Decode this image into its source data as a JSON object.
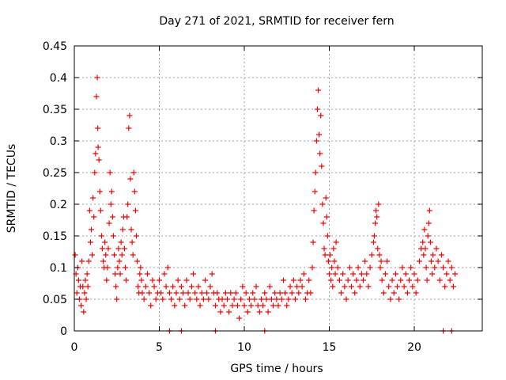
{
  "chart_data": {
    "type": "scatter",
    "title": "Day 271 of 2021, SRMTID for receiver fern",
    "xlabel": "GPS time / hours",
    "ylabel": "SRMTID / TECUs",
    "xlim": [
      0,
      24
    ],
    "ylim": [
      0,
      0.45
    ],
    "x_ticks": [
      0,
      5,
      10,
      15,
      20
    ],
    "x_tick_labels": [
      "0",
      "5",
      "10",
      "15",
      "20"
    ],
    "y_ticks": [
      0,
      0.05,
      0.1,
      0.15,
      0.2,
      0.25,
      0.3,
      0.35,
      0.4,
      0.45
    ],
    "y_tick_labels": [
      "0",
      "0.05",
      "0.1",
      "0.15",
      "0.2",
      "0.25",
      "0.3",
      "0.35",
      "0.4",
      "0.45"
    ],
    "grid": true,
    "marker": "plus",
    "color": "#ff0000",
    "series": [
      {
        "points": [
          [
            0.05,
            0.12
          ],
          [
            0.1,
            0.09
          ],
          [
            0.15,
            0.06
          ],
          [
            0.2,
            0.1
          ],
          [
            0.25,
            0.08
          ],
          [
            0.3,
            0.05
          ],
          [
            0.35,
            0.07
          ],
          [
            0.4,
            0.04
          ],
          [
            0.45,
            0.11
          ],
          [
            0.5,
            0.07
          ],
          [
            0.55,
            0.03
          ],
          [
            0.6,
            0.06
          ],
          [
            0.65,
            0.08
          ],
          [
            0.7,
            0.05
          ],
          [
            0.75,
            0.09
          ],
          [
            0.8,
            0.07
          ],
          [
            0.85,
            0.11
          ],
          [
            0.9,
            0.19
          ],
          [
            0.95,
            0.14
          ],
          [
            1.0,
            0.16
          ],
          [
            1.05,
            0.12
          ],
          [
            1.1,
            0.21
          ],
          [
            1.15,
            0.18
          ],
          [
            1.2,
            0.25
          ],
          [
            1.25,
            0.28
          ],
          [
            1.3,
            0.37
          ],
          [
            1.35,
            0.4
          ],
          [
            1.38,
            0.32
          ],
          [
            1.4,
            0.29
          ],
          [
            1.45,
            0.27
          ],
          [
            1.5,
            0.22
          ],
          [
            1.55,
            0.19
          ],
          [
            1.6,
            0.15
          ],
          [
            1.65,
            0.13
          ],
          [
            1.7,
            0.11
          ],
          [
            1.75,
            0.1
          ],
          [
            1.8,
            0.14
          ],
          [
            1.85,
            0.12
          ],
          [
            1.9,
            0.08
          ],
          [
            1.95,
            0.1
          ],
          [
            2.0,
            0.13
          ],
          [
            2.05,
            0.17
          ],
          [
            2.1,
            0.25
          ],
          [
            2.15,
            0.2
          ],
          [
            2.2,
            0.22
          ],
          [
            2.25,
            0.18
          ],
          [
            2.3,
            0.15
          ],
          [
            2.35,
            0.12
          ],
          [
            2.4,
            0.09
          ],
          [
            2.45,
            0.07
          ],
          [
            2.5,
            0.05
          ],
          [
            2.55,
            0.1
          ],
          [
            2.6,
            0.13
          ],
          [
            2.65,
            0.11
          ],
          [
            2.7,
            0.09
          ],
          [
            2.75,
            0.14
          ],
          [
            2.8,
            0.12
          ],
          [
            2.85,
            0.16
          ],
          [
            2.9,
            0.18
          ],
          [
            2.95,
            0.13
          ],
          [
            3.0,
            0.1
          ],
          [
            3.05,
            0.08
          ],
          [
            3.1,
            0.18
          ],
          [
            3.15,
            0.2
          ],
          [
            3.2,
            0.32
          ],
          [
            3.25,
            0.34
          ],
          [
            3.3,
            0.24
          ],
          [
            3.35,
            0.16
          ],
          [
            3.4,
            0.14
          ],
          [
            3.45,
            0.12
          ],
          [
            3.5,
            0.25
          ],
          [
            3.55,
            0.22
          ],
          [
            3.6,
            0.19
          ],
          [
            3.65,
            0.15
          ],
          [
            3.7,
            0.11
          ],
          [
            3.75,
            0.07
          ],
          [
            3.8,
            0.06
          ],
          [
            3.85,
            0.09
          ],
          [
            3.9,
            0.1
          ],
          [
            3.95,
            0.08
          ],
          [
            4.0,
            0.06
          ],
          [
            4.1,
            0.05
          ],
          [
            4.2,
            0.07
          ],
          [
            4.3,
            0.09
          ],
          [
            4.4,
            0.06
          ],
          [
            4.5,
            0.04
          ],
          [
            4.6,
            0.08
          ],
          [
            4.7,
            0.07
          ],
          [
            4.8,
            0.05
          ],
          [
            4.9,
            0.06
          ],
          [
            5.0,
            0.08
          ],
          [
            5.1,
            0.06
          ],
          [
            5.2,
            0.05
          ],
          [
            5.3,
            0.09
          ],
          [
            5.4,
            0.07
          ],
          [
            5.5,
            0.1
          ],
          [
            5.6,
            0.06
          ],
          [
            5.7,
            0.05
          ],
          [
            5.8,
            0.07
          ],
          [
            5.9,
            0.04
          ],
          [
            6.0,
            0.06
          ],
          [
            6.1,
            0.08
          ],
          [
            6.2,
            0.05
          ],
          [
            6.3,
            0.07
          ],
          [
            6.4,
            0.06
          ],
          [
            6.5,
            0.04
          ],
          [
            6.6,
            0.08
          ],
          [
            6.7,
            0.06
          ],
          [
            6.8,
            0.05
          ],
          [
            6.9,
            0.07
          ],
          [
            7.0,
            0.09
          ],
          [
            7.1,
            0.06
          ],
          [
            7.2,
            0.05
          ],
          [
            7.3,
            0.07
          ],
          [
            7.4,
            0.04
          ],
          [
            7.5,
            0.06
          ],
          [
            7.6,
            0.05
          ],
          [
            7.7,
            0.08
          ],
          [
            7.8,
            0.06
          ],
          [
            7.9,
            0.05
          ],
          [
            8.0,
            0.07
          ],
          [
            8.1,
            0.09
          ],
          [
            8.2,
            0.06
          ],
          [
            8.3,
            0.04
          ],
          [
            8.4,
            0.06
          ],
          [
            8.5,
            0.05
          ],
          [
            8.6,
            0.03
          ],
          [
            8.7,
            0.05
          ],
          [
            8.8,
            0.04
          ],
          [
            8.9,
            0.06
          ],
          [
            9.0,
            0.05
          ],
          [
            9.1,
            0.03
          ],
          [
            9.2,
            0.06
          ],
          [
            9.3,
            0.04
          ],
          [
            9.4,
            0.05
          ],
          [
            9.5,
            0.06
          ],
          [
            9.6,
            0.04
          ],
          [
            9.7,
            0.02
          ],
          [
            9.8,
            0.05
          ],
          [
            9.9,
            0.07
          ],
          [
            10.0,
            0.04
          ],
          [
            10.1,
            0.06
          ],
          [
            10.2,
            0.03
          ],
          [
            10.3,
            0.05
          ],
          [
            10.4,
            0.04
          ],
          [
            10.5,
            0.06
          ],
          [
            10.6,
            0.05
          ],
          [
            10.7,
            0.07
          ],
          [
            10.8,
            0.04
          ],
          [
            10.9,
            0.03
          ],
          [
            11.0,
            0.05
          ],
          [
            11.1,
            0.04
          ],
          [
            11.2,
            0.06
          ],
          [
            11.3,
            0.05
          ],
          [
            11.4,
            0.03
          ],
          [
            11.5,
            0.07
          ],
          [
            11.6,
            0.05
          ],
          [
            11.7,
            0.04
          ],
          [
            11.8,
            0.06
          ],
          [
            11.9,
            0.05
          ],
          [
            12.0,
            0.04
          ],
          [
            12.1,
            0.06
          ],
          [
            12.2,
            0.05
          ],
          [
            12.3,
            0.08
          ],
          [
            12.4,
            0.06
          ],
          [
            12.5,
            0.04
          ],
          [
            12.6,
            0.05
          ],
          [
            12.7,
            0.07
          ],
          [
            12.8,
            0.06
          ],
          [
            12.9,
            0.08
          ],
          [
            13.0,
            0.05
          ],
          [
            13.1,
            0.07
          ],
          [
            13.2,
            0.06
          ],
          [
            13.3,
            0.08
          ],
          [
            13.4,
            0.07
          ],
          [
            13.5,
            0.09
          ],
          [
            13.6,
            0.05
          ],
          [
            13.7,
            0.06
          ],
          [
            13.8,
            0.08
          ],
          [
            13.9,
            0.06
          ],
          [
            14.0,
            0.1
          ],
          [
            14.05,
            0.14
          ],
          [
            14.1,
            0.19
          ],
          [
            14.15,
            0.22
          ],
          [
            14.2,
            0.25
          ],
          [
            14.25,
            0.3
          ],
          [
            14.3,
            0.35
          ],
          [
            14.35,
            0.38
          ],
          [
            14.4,
            0.31
          ],
          [
            14.45,
            0.28
          ],
          [
            14.5,
            0.34
          ],
          [
            14.55,
            0.26
          ],
          [
            14.6,
            0.2
          ],
          [
            14.65,
            0.17
          ],
          [
            14.7,
            0.13
          ],
          [
            14.75,
            0.12
          ],
          [
            14.8,
            0.21
          ],
          [
            14.85,
            0.18
          ],
          [
            14.9,
            0.15
          ],
          [
            14.95,
            0.11
          ],
          [
            15.0,
            0.09
          ],
          [
            15.05,
            0.12
          ],
          [
            15.1,
            0.08
          ],
          [
            15.15,
            0.1
          ],
          [
            15.2,
            0.07
          ],
          [
            15.25,
            0.13
          ],
          [
            15.3,
            0.11
          ],
          [
            15.35,
            0.09
          ],
          [
            15.4,
            0.14
          ],
          [
            15.5,
            0.1
          ],
          [
            15.6,
            0.08
          ],
          [
            15.7,
            0.06
          ],
          [
            15.8,
            0.09
          ],
          [
            15.9,
            0.07
          ],
          [
            16.0,
            0.05
          ],
          [
            16.1,
            0.08
          ],
          [
            16.2,
            0.1
          ],
          [
            16.3,
            0.07
          ],
          [
            16.4,
            0.09
          ],
          [
            16.5,
            0.06
          ],
          [
            16.6,
            0.08
          ],
          [
            16.7,
            0.1
          ],
          [
            16.8,
            0.07
          ],
          [
            16.9,
            0.09
          ],
          [
            17.0,
            0.08
          ],
          [
            17.1,
            0.11
          ],
          [
            17.2,
            0.09
          ],
          [
            17.3,
            0.07
          ],
          [
            17.4,
            0.1
          ],
          [
            17.5,
            0.12
          ],
          [
            17.6,
            0.14
          ],
          [
            17.65,
            0.15
          ],
          [
            17.7,
            0.17
          ],
          [
            17.75,
            0.19
          ],
          [
            17.8,
            0.18
          ],
          [
            17.85,
            0.13
          ],
          [
            17.9,
            0.2
          ],
          [
            17.95,
            0.12
          ],
          [
            18.0,
            0.1
          ],
          [
            18.05,
            0.11
          ],
          [
            18.1,
            0.08
          ],
          [
            18.2,
            0.06
          ],
          [
            18.3,
            0.09
          ],
          [
            18.4,
            0.11
          ],
          [
            18.5,
            0.07
          ],
          [
            18.6,
            0.05
          ],
          [
            18.7,
            0.08
          ],
          [
            18.8,
            0.06
          ],
          [
            18.9,
            0.09
          ],
          [
            19.0,
            0.07
          ],
          [
            19.1,
            0.05
          ],
          [
            19.2,
            0.08
          ],
          [
            19.3,
            0.1
          ],
          [
            19.4,
            0.07
          ],
          [
            19.5,
            0.09
          ],
          [
            19.6,
            0.06
          ],
          [
            19.7,
            0.08
          ],
          [
            19.8,
            0.1
          ],
          [
            19.9,
            0.07
          ],
          [
            20.0,
            0.09
          ],
          [
            20.1,
            0.06
          ],
          [
            20.2,
            0.08
          ],
          [
            20.3,
            0.11
          ],
          [
            20.4,
            0.13
          ],
          [
            20.5,
            0.14
          ],
          [
            20.55,
            0.12
          ],
          [
            20.6,
            0.16
          ],
          [
            20.65,
            0.13
          ],
          [
            20.7,
            0.1
          ],
          [
            20.75,
            0.08
          ],
          [
            20.8,
            0.15
          ],
          [
            20.85,
            0.17
          ],
          [
            20.9,
            0.19
          ],
          [
            20.95,
            0.14
          ],
          [
            21.0,
            0.11
          ],
          [
            21.05,
            0.09
          ],
          [
            21.1,
            0.12
          ],
          [
            21.2,
            0.1
          ],
          [
            21.3,
            0.13
          ],
          [
            21.4,
            0.11
          ],
          [
            21.5,
            0.08
          ],
          [
            21.6,
            0.12
          ],
          [
            21.7,
            0.1
          ],
          [
            21.8,
            0.07
          ],
          [
            21.9,
            0.09
          ],
          [
            22.0,
            0.11
          ],
          [
            22.1,
            0.08
          ],
          [
            22.2,
            0.1
          ],
          [
            22.3,
            0.07
          ],
          [
            22.4,
            0.09
          ]
        ]
      },
      {
        "points": [
          [
            5.6,
            0
          ],
          [
            6.3,
            0
          ],
          [
            8.3,
            0
          ],
          [
            11.2,
            0
          ],
          [
            21.7,
            0
          ],
          [
            22.2,
            0
          ]
        ]
      }
    ]
  }
}
